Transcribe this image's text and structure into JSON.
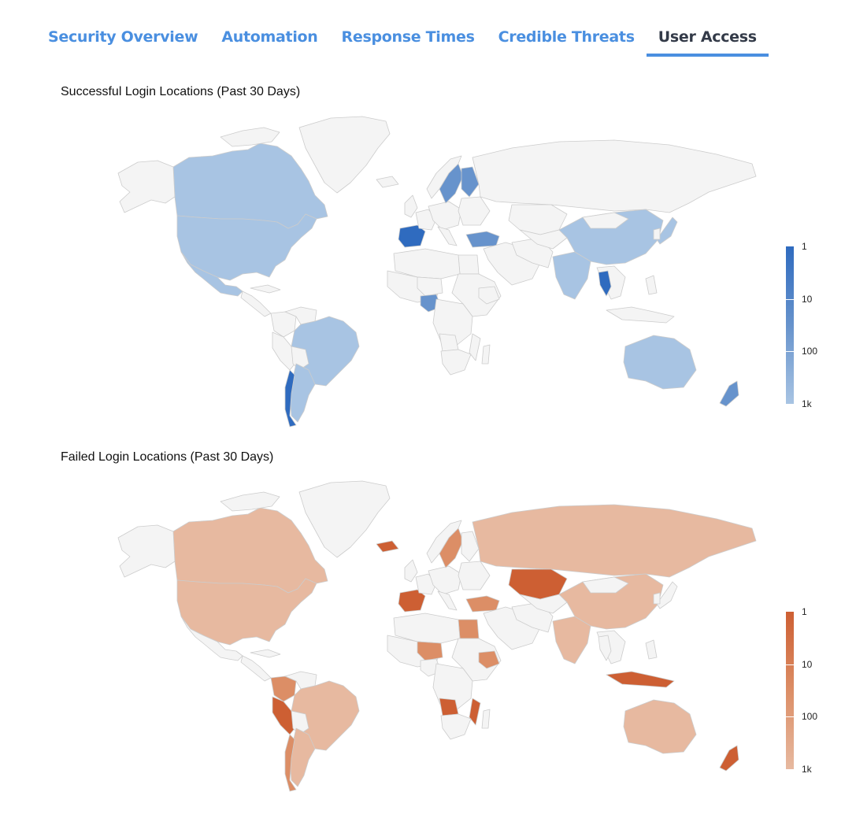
{
  "tabs": [
    {
      "label": "Security Overview",
      "active": false
    },
    {
      "label": "Automation",
      "active": false
    },
    {
      "label": "Response Times",
      "active": false
    },
    {
      "label": "Credible Threats",
      "active": false
    },
    {
      "label": "User Access",
      "active": true
    }
  ],
  "colors": {
    "tab_text": "#4a8fe0",
    "tab_active_text": "#333a48",
    "tab_underline": "#4a8fe0",
    "land_nodata": "#f4f4f4",
    "border": "#cccccc"
  },
  "maps": [
    {
      "title": "Successful Login Locations (Past 30 Days)",
      "palette": {
        "light": "#a8c4e3",
        "mid": "#6793cc",
        "dark": "#2f6bbf"
      },
      "legend": {
        "ticks": [
          "1",
          "10",
          "100",
          "1k"
        ]
      },
      "chart_data": {
        "type": "choropleth",
        "scale": "log",
        "range": [
          1,
          1000
        ],
        "legend": [
          "1",
          "10",
          "100",
          "1k"
        ],
        "regions": [
          {
            "name": "Canada",
            "level": "light"
          },
          {
            "name": "USA",
            "level": "light"
          },
          {
            "name": "Mexico",
            "level": "light"
          },
          {
            "name": "Brazil",
            "level": "light"
          },
          {
            "name": "Argentina",
            "level": "light"
          },
          {
            "name": "Chile",
            "level": "dark"
          },
          {
            "name": "Spain",
            "level": "dark"
          },
          {
            "name": "Sweden",
            "level": "mid"
          },
          {
            "name": "Finland",
            "level": "mid"
          },
          {
            "name": "Turkey",
            "level": "mid"
          },
          {
            "name": "Nigeria",
            "level": "mid"
          },
          {
            "name": "China",
            "level": "light"
          },
          {
            "name": "India",
            "level": "light"
          },
          {
            "name": "Thailand",
            "level": "dark"
          },
          {
            "name": "Japan",
            "level": "light"
          },
          {
            "name": "Australia",
            "level": "light"
          },
          {
            "name": "New Zealand",
            "level": "mid"
          }
        ]
      }
    },
    {
      "title": "Failed Login Locations (Past 30 Days)",
      "palette": {
        "light": "#e7b9a0",
        "mid": "#dc8e66",
        "dark": "#cd5f33"
      },
      "legend": {
        "ticks": [
          "1",
          "10",
          "100",
          "1k"
        ]
      },
      "chart_data": {
        "type": "choropleth",
        "scale": "log",
        "range": [
          1,
          1000
        ],
        "legend": [
          "1",
          "10",
          "100",
          "1k"
        ],
        "regions": [
          {
            "name": "Canada",
            "level": "light"
          },
          {
            "name": "USA",
            "level": "light"
          },
          {
            "name": "Russia",
            "level": "light"
          },
          {
            "name": "Kazakhstan",
            "level": "dark"
          },
          {
            "name": "China",
            "level": "light"
          },
          {
            "name": "India",
            "level": "light"
          },
          {
            "name": "Brazil",
            "level": "light"
          },
          {
            "name": "Peru",
            "level": "dark"
          },
          {
            "name": "Colombia",
            "level": "mid"
          },
          {
            "name": "Chile",
            "level": "mid"
          },
          {
            "name": "Argentina",
            "level": "light"
          },
          {
            "name": "Angola",
            "level": "dark"
          },
          {
            "name": "Niger",
            "level": "mid"
          },
          {
            "name": "Ethiopia",
            "level": "mid"
          },
          {
            "name": "Mozambique",
            "level": "dark"
          },
          {
            "name": "Australia",
            "level": "light"
          },
          {
            "name": "Indonesia",
            "level": "dark"
          },
          {
            "name": "Sweden",
            "level": "mid"
          },
          {
            "name": "Iceland",
            "level": "dark"
          },
          {
            "name": "Turkey",
            "level": "mid"
          },
          {
            "name": "Egypt",
            "level": "mid"
          },
          {
            "name": "Spain",
            "level": "dark"
          },
          {
            "name": "New Zealand",
            "level": "dark"
          }
        ]
      }
    }
  ]
}
